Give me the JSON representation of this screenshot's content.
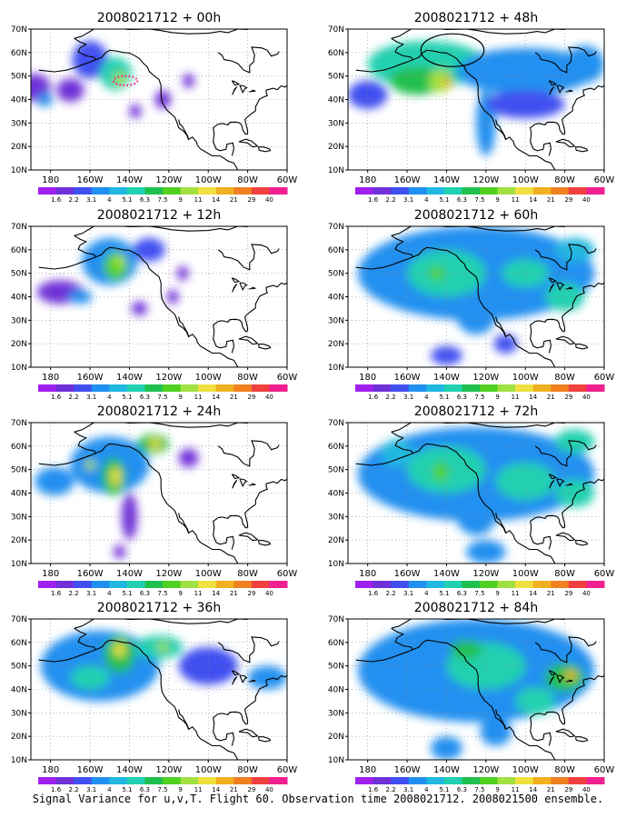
{
  "caption": "Signal Variance for u,v,T. Flight 60. Observation time 2008021712. 2008021500 ensemble.",
  "colorbar": {
    "labels": [
      "1.6",
      "2.2",
      "3.1",
      "4",
      "5.1",
      "6.3",
      "7.5",
      "9",
      "11",
      "14",
      "21",
      "29",
      "40"
    ],
    "colors": [
      "#a020f0",
      "#7030d8",
      "#4050f0",
      "#2090f0",
      "#20b8e0",
      "#20d0b0",
      "#20c050",
      "#50d020",
      "#a0e040",
      "#f0e040",
      "#f0b020",
      "#f08020",
      "#f04040",
      "#f02090"
    ]
  },
  "chart_data": [
    {
      "type": "heatmap",
      "title": "2008021712 + 00h",
      "x_ticks": [
        "180",
        "160W",
        "140W",
        "120W",
        "100W",
        "80W",
        "60W"
      ],
      "y_ticks": [
        "10N",
        "20N",
        "30N",
        "40N",
        "50N",
        "60N",
        "70N"
      ],
      "xlim": [
        -190,
        -60
      ],
      "ylim": [
        10,
        70
      ],
      "blobs": [
        {
          "lon": -160,
          "lat": 57,
          "level": 2,
          "sx": 9,
          "sy": 8
        },
        {
          "lon": -188,
          "lat": 45,
          "level": 1,
          "sx": 8,
          "sy": 6
        },
        {
          "lon": -183,
          "lat": 40,
          "level": 3,
          "sx": 4,
          "sy": 3
        },
        {
          "lon": -170,
          "lat": 44,
          "level": 1,
          "sx": 7,
          "sy": 5
        },
        {
          "lon": -147,
          "lat": 51,
          "level": 5,
          "sx": 8,
          "sy": 7
        },
        {
          "lon": -145,
          "lat": 49,
          "level": 8,
          "sx": 3,
          "sy": 3
        },
        {
          "lon": -137,
          "lat": 35,
          "level": 1,
          "sx": 3,
          "sy": 3
        },
        {
          "lon": -123,
          "lat": 40,
          "level": 1,
          "sx": 4,
          "sy": 4
        },
        {
          "lon": -110,
          "lat": 48,
          "level": 1,
          "sx": 3,
          "sy": 3
        }
      ],
      "dotted_ellipse": {
        "lon": -142,
        "lat": 48,
        "rlon": 6,
        "rlat": 2
      }
    },
    {
      "type": "heatmap",
      "title": "2008021712 + 48h",
      "x_ticks": [
        "180",
        "160W",
        "140W",
        "120W",
        "100W",
        "80W",
        "60W"
      ],
      "y_ticks": [
        "10N",
        "20N",
        "30N",
        "40N",
        "50N",
        "60N",
        "70N"
      ],
      "xlim": [
        -190,
        -60
      ],
      "ylim": [
        10,
        70
      ],
      "blobs": [
        {
          "lon": -150,
          "lat": 55,
          "level": 5,
          "sx": 30,
          "sy": 10
        },
        {
          "lon": -100,
          "lat": 52,
          "level": 3,
          "sx": 35,
          "sy": 10
        },
        {
          "lon": -155,
          "lat": 48,
          "level": 6,
          "sx": 14,
          "sy": 6
        },
        {
          "lon": -143,
          "lat": 48,
          "level": 8,
          "sx": 6,
          "sy": 5
        },
        {
          "lon": -140,
          "lat": 47,
          "level": 10,
          "sx": 2.5,
          "sy": 2
        },
        {
          "lon": -120,
          "lat": 30,
          "level": 3,
          "sx": 5,
          "sy": 14
        },
        {
          "lon": -100,
          "lat": 38,
          "level": 2,
          "sx": 20,
          "sy": 6
        },
        {
          "lon": -70,
          "lat": 55,
          "level": 3,
          "sx": 10,
          "sy": 8
        },
        {
          "lon": -180,
          "lat": 42,
          "level": 2,
          "sx": 10,
          "sy": 6
        }
      ],
      "ellipse": {
        "lon": -137,
        "lat": 61,
        "rlon": 16,
        "rlat": 7
      }
    },
    {
      "type": "heatmap",
      "title": "2008021712 + 12h",
      "x_ticks": [
        "180",
        "160W",
        "140W",
        "120W",
        "100W",
        "80W",
        "60W"
      ],
      "y_ticks": [
        "10N",
        "20N",
        "30N",
        "40N",
        "50N",
        "60N",
        "70N"
      ],
      "xlim": [
        -190,
        -60
      ],
      "ylim": [
        10,
        70
      ],
      "blobs": [
        {
          "lon": -150,
          "lat": 55,
          "level": 3,
          "sx": 14,
          "sy": 10
        },
        {
          "lon": -175,
          "lat": 42,
          "level": 1,
          "sx": 12,
          "sy": 5
        },
        {
          "lon": -165,
          "lat": 40,
          "level": 3,
          "sx": 6,
          "sy": 3
        },
        {
          "lon": -147,
          "lat": 53,
          "level": 7,
          "sx": 6,
          "sy": 6
        },
        {
          "lon": -145,
          "lat": 55,
          "level": 8,
          "sx": 3,
          "sy": 3
        },
        {
          "lon": -130,
          "lat": 60,
          "level": 2,
          "sx": 8,
          "sy": 5
        },
        {
          "lon": -135,
          "lat": 35,
          "level": 1,
          "sx": 4,
          "sy": 3
        },
        {
          "lon": -113,
          "lat": 50,
          "level": 1,
          "sx": 3,
          "sy": 3
        },
        {
          "lon": -118,
          "lat": 40,
          "level": 1,
          "sx": 3,
          "sy": 3
        }
      ]
    },
    {
      "type": "heatmap",
      "title": "2008021712 + 60h",
      "x_ticks": [
        "180",
        "160W",
        "140W",
        "120W",
        "100W",
        "80W",
        "60W"
      ],
      "y_ticks": [
        "10N",
        "20N",
        "30N",
        "40N",
        "50N",
        "60N",
        "70N"
      ],
      "xlim": [
        -190,
        -60
      ],
      "ylim": [
        10,
        70
      ],
      "blobs": [
        {
          "lon": -125,
          "lat": 50,
          "level": 3,
          "sx": 60,
          "sy": 20
        },
        {
          "lon": -140,
          "lat": 50,
          "level": 5,
          "sx": 20,
          "sy": 10
        },
        {
          "lon": -145,
          "lat": 50,
          "level": 7,
          "sx": 4,
          "sy": 3
        },
        {
          "lon": -100,
          "lat": 50,
          "level": 5,
          "sx": 12,
          "sy": 6
        },
        {
          "lon": -80,
          "lat": 40,
          "level": 5,
          "sx": 10,
          "sy": 6
        },
        {
          "lon": -75,
          "lat": 60,
          "level": 4,
          "sx": 10,
          "sy": 5
        },
        {
          "lon": -125,
          "lat": 32,
          "level": 3,
          "sx": 10,
          "sy": 8
        },
        {
          "lon": -140,
          "lat": 15,
          "level": 2,
          "sx": 8,
          "sy": 4
        },
        {
          "lon": -110,
          "lat": 20,
          "level": 2,
          "sx": 6,
          "sy": 4
        }
      ]
    },
    {
      "type": "heatmap",
      "title": "2008021712 + 24h",
      "x_ticks": [
        "180",
        "160W",
        "140W",
        "120W",
        "100W",
        "80W",
        "60W"
      ],
      "y_ticks": [
        "10N",
        "20N",
        "30N",
        "40N",
        "50N",
        "60N",
        "70N"
      ],
      "xlim": [
        -190,
        -60
      ],
      "ylim": [
        10,
        70
      ],
      "blobs": [
        {
          "lon": -150,
          "lat": 52,
          "level": 3,
          "sx": 20,
          "sy": 12
        },
        {
          "lon": -178,
          "lat": 45,
          "level": 3,
          "sx": 10,
          "sy": 6
        },
        {
          "lon": -148,
          "lat": 47,
          "level": 6,
          "sx": 6,
          "sy": 8
        },
        {
          "lon": -147,
          "lat": 47,
          "level": 9,
          "sx": 2.5,
          "sy": 4
        },
        {
          "lon": -160,
          "lat": 52,
          "level": 8,
          "sx": 3,
          "sy": 2
        },
        {
          "lon": -128,
          "lat": 61,
          "level": 6,
          "sx": 8,
          "sy": 4
        },
        {
          "lon": -127,
          "lat": 61,
          "level": 9,
          "sx": 3,
          "sy": 2
        },
        {
          "lon": -140,
          "lat": 30,
          "level": 1,
          "sx": 4,
          "sy": 10
        },
        {
          "lon": -145,
          "lat": 15,
          "level": 1,
          "sx": 3,
          "sy": 3
        },
        {
          "lon": -110,
          "lat": 55,
          "level": 1,
          "sx": 5,
          "sy": 4
        }
      ]
    },
    {
      "type": "heatmap",
      "title": "2008021712 + 72h",
      "x_ticks": [
        "180",
        "160W",
        "140W",
        "120W",
        "100W",
        "80W",
        "60W"
      ],
      "y_ticks": [
        "10N",
        "20N",
        "30N",
        "40N",
        "50N",
        "60N",
        "70N"
      ],
      "xlim": [
        -190,
        -60
      ],
      "ylim": [
        10,
        70
      ],
      "blobs": [
        {
          "lon": -125,
          "lat": 48,
          "level": 3,
          "sx": 60,
          "sy": 20
        },
        {
          "lon": -140,
          "lat": 50,
          "level": 5,
          "sx": 20,
          "sy": 10
        },
        {
          "lon": -143,
          "lat": 49,
          "level": 7,
          "sx": 4,
          "sy": 4
        },
        {
          "lon": -100,
          "lat": 45,
          "level": 5,
          "sx": 15,
          "sy": 8
        },
        {
          "lon": -75,
          "lat": 40,
          "level": 5,
          "sx": 10,
          "sy": 6
        },
        {
          "lon": -75,
          "lat": 62,
          "level": 5,
          "sx": 10,
          "sy": 5
        },
        {
          "lon": -125,
          "lat": 30,
          "level": 3,
          "sx": 10,
          "sy": 8
        },
        {
          "lon": -120,
          "lat": 15,
          "level": 3,
          "sx": 10,
          "sy": 5
        },
        {
          "lon": -165,
          "lat": 57,
          "level": 4,
          "sx": 8,
          "sy": 6
        }
      ]
    },
    {
      "type": "heatmap",
      "title": "2008021712 + 36h",
      "x_ticks": [
        "180",
        "160W",
        "140W",
        "120W",
        "100W",
        "80W",
        "60W"
      ],
      "y_ticks": [
        "10N",
        "20N",
        "30N",
        "40N",
        "50N",
        "60N",
        "70N"
      ],
      "xlim": [
        -190,
        -60
      ],
      "ylim": [
        10,
        70
      ],
      "blobs": [
        {
          "lon": -155,
          "lat": 50,
          "level": 3,
          "sx": 30,
          "sy": 15
        },
        {
          "lon": -145,
          "lat": 55,
          "level": 6,
          "sx": 8,
          "sy": 8
        },
        {
          "lon": -145,
          "lat": 57,
          "level": 9,
          "sx": 3,
          "sy": 3
        },
        {
          "lon": -160,
          "lat": 45,
          "level": 5,
          "sx": 10,
          "sy": 5
        },
        {
          "lon": -125,
          "lat": 58,
          "level": 5,
          "sx": 12,
          "sy": 5
        },
        {
          "lon": -123,
          "lat": 58,
          "level": 8,
          "sx": 3,
          "sy": 2
        },
        {
          "lon": -100,
          "lat": 50,
          "level": 2,
          "sx": 15,
          "sy": 8
        },
        {
          "lon": -70,
          "lat": 45,
          "level": 3,
          "sx": 10,
          "sy": 5
        }
      ]
    },
    {
      "type": "heatmap",
      "title": "2008021712 + 84h",
      "x_ticks": [
        "180",
        "160W",
        "140W",
        "120W",
        "100W",
        "80W",
        "60W"
      ],
      "y_ticks": [
        "10N",
        "20N",
        "30N",
        "40N",
        "50N",
        "60N",
        "70N"
      ],
      "xlim": [
        -190,
        -60
      ],
      "ylim": [
        10,
        70
      ],
      "blobs": [
        {
          "lon": -125,
          "lat": 48,
          "level": 3,
          "sx": 60,
          "sy": 22
        },
        {
          "lon": -120,
          "lat": 50,
          "level": 5,
          "sx": 20,
          "sy": 10
        },
        {
          "lon": -80,
          "lat": 45,
          "level": 6,
          "sx": 10,
          "sy": 6
        },
        {
          "lon": -77,
          "lat": 46,
          "level": 10,
          "sx": 3,
          "sy": 2
        },
        {
          "lon": -130,
          "lat": 57,
          "level": 6,
          "sx": 8,
          "sy": 4
        },
        {
          "lon": -95,
          "lat": 35,
          "level": 5,
          "sx": 10,
          "sy": 6
        },
        {
          "lon": -140,
          "lat": 15,
          "level": 3,
          "sx": 8,
          "sy": 5
        },
        {
          "lon": -115,
          "lat": 22,
          "level": 3,
          "sx": 8,
          "sy": 6
        }
      ]
    }
  ]
}
